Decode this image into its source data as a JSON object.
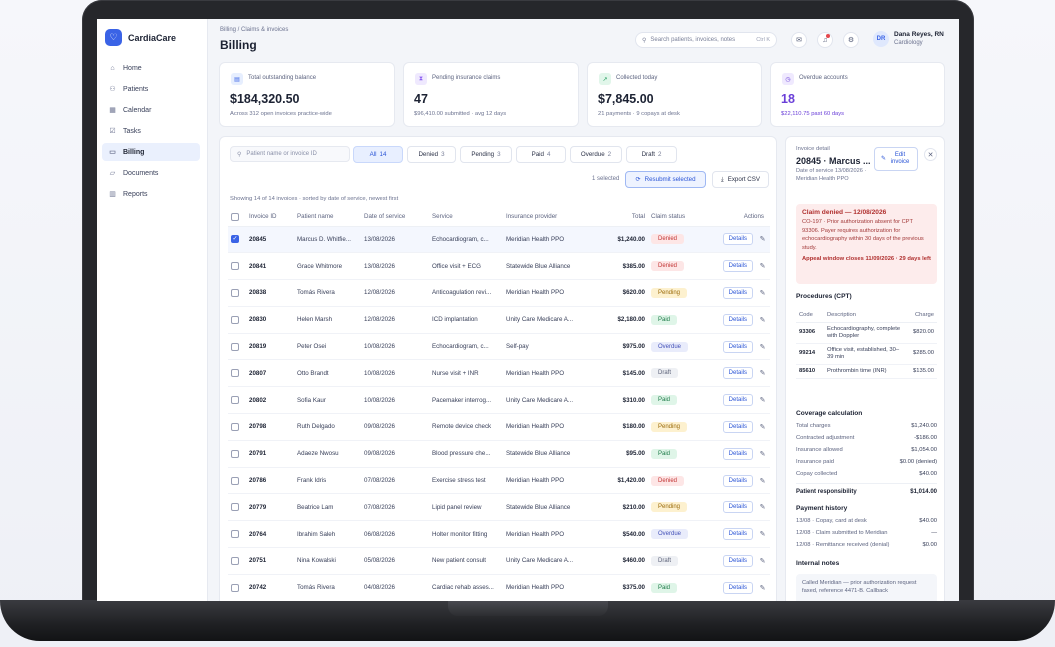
{
  "app": {
    "brand": "CardiaCare"
  },
  "sidebar": {
    "items": [
      {
        "label": "Home",
        "icon": "home-icon",
        "glyph": "⌂"
      },
      {
        "label": "Patients",
        "icon": "users-icon",
        "glyph": "⚇"
      },
      {
        "label": "Calendar",
        "icon": "calendar-icon",
        "glyph": "▦"
      },
      {
        "label": "Tasks",
        "icon": "tasks-icon",
        "glyph": "☑"
      },
      {
        "label": "Billing",
        "icon": "billing-icon",
        "glyph": "▭"
      },
      {
        "label": "Documents",
        "icon": "folder-icon",
        "glyph": "▱"
      },
      {
        "label": "Reports",
        "icon": "reports-icon",
        "glyph": "▥"
      }
    ]
  },
  "header": {
    "breadcrumb": "Billing / Claims & invoices",
    "title": "Billing",
    "search_placeholder": "Search patients, invoices, notes",
    "search_shortcut": "Ctrl K",
    "user": {
      "initials": "DR",
      "name": "Dana Reyes, RN",
      "role": "Cardiology"
    }
  },
  "stats": [
    {
      "label": "Total outstanding balance",
      "value": "$184,320.50",
      "sub": "Across 312 open invoices practice-wide",
      "color": "#3a63e6",
      "bg": "#e6eefe",
      "glyph": "▤"
    },
    {
      "label": "Pending insurance claims",
      "value": "47",
      "sub": "$96,410.00 submitted · avg 12 days",
      "color": "#8a5cf0",
      "bg": "#efe9fe",
      "glyph": "⧗"
    },
    {
      "label": "Collected today",
      "value": "$7,845.00",
      "sub": "21 payments · 9 copays at desk",
      "color": "#1d9a5a",
      "bg": "#e1f6ea",
      "glyph": "↗"
    },
    {
      "label": "Overdue accounts",
      "value": "18",
      "sub": "$22,110.75 past 60 days",
      "color": "#6a3fd8",
      "bg": "#efe9fe",
      "glyph": "◷"
    }
  ],
  "filters": {
    "search_placeholder": "Patient name or invoice ID",
    "tabs": [
      {
        "label": "All",
        "count": "14"
      },
      {
        "label": "Denied",
        "count": "3"
      },
      {
        "label": "Pending",
        "count": "3"
      },
      {
        "label": "Paid",
        "count": "4"
      },
      {
        "label": "Overdue",
        "count": "2"
      },
      {
        "label": "Draft",
        "count": "2"
      }
    ],
    "selected_info": "1 selected",
    "resubmit_label": "Resubmit selected",
    "export_label": "Export CSV",
    "showing": "Showing 14 of 14 invoices · sorted by date of service, newest first"
  },
  "table": {
    "columns": [
      "Invoice ID",
      "Patient name",
      "Date of service",
      "Service",
      "Insurance provider",
      "Total",
      "Claim status",
      "Actions"
    ],
    "details_label": "Details",
    "rows": [
      {
        "id": "20845",
        "patient": "Marcus D. Whitfie...",
        "date": "13/08/2026",
        "service": "Echocardiogram, c...",
        "insurer": "Meridian Health PPO",
        "total": "$1,240.00",
        "status": "Denied",
        "selected": true
      },
      {
        "id": "20841",
        "patient": "Grace Whitmore",
        "date": "13/08/2026",
        "service": "Office visit + ECG",
        "insurer": "Statewide Blue Alliance",
        "total": "$385.00",
        "status": "Denied"
      },
      {
        "id": "20838",
        "patient": "Tomás Rivera",
        "date": "12/08/2026",
        "service": "Anticoagulation revi...",
        "insurer": "Meridian Health PPO",
        "total": "$620.00",
        "status": "Pending"
      },
      {
        "id": "20830",
        "patient": "Helen Marsh",
        "date": "12/08/2026",
        "service": "ICD implantation",
        "insurer": "Unity Care Medicare A...",
        "total": "$2,180.00",
        "status": "Paid"
      },
      {
        "id": "20819",
        "patient": "Peter Osei",
        "date": "10/08/2026",
        "service": "Echocardiogram, c...",
        "insurer": "Self-pay",
        "total": "$975.00",
        "status": "Overdue"
      },
      {
        "id": "20807",
        "patient": "Otto Brandt",
        "date": "10/08/2026",
        "service": "Nurse visit + INR",
        "insurer": "Meridian Health PPO",
        "total": "$145.00",
        "status": "Draft"
      },
      {
        "id": "20802",
        "patient": "Sofia Kaur",
        "date": "10/08/2026",
        "service": "Pacemaker interrog...",
        "insurer": "Unity Care Medicare A...",
        "total": "$310.00",
        "status": "Paid"
      },
      {
        "id": "20798",
        "patient": "Ruth Delgado",
        "date": "09/08/2026",
        "service": "Remote device check",
        "insurer": "Meridian Health PPO",
        "total": "$180.00",
        "status": "Pending"
      },
      {
        "id": "20791",
        "patient": "Adaeze Nwosu",
        "date": "09/08/2026",
        "service": "Blood pressure che...",
        "insurer": "Statewide Blue Alliance",
        "total": "$95.00",
        "status": "Paid"
      },
      {
        "id": "20786",
        "patient": "Frank Idris",
        "date": "07/08/2026",
        "service": "Exercise stress test",
        "insurer": "Meridian Health PPO",
        "total": "$1,420.00",
        "status": "Denied"
      },
      {
        "id": "20779",
        "patient": "Beatrice Lam",
        "date": "07/08/2026",
        "service": "Lipid panel review",
        "insurer": "Statewide Blue Alliance",
        "total": "$210.00",
        "status": "Pending"
      },
      {
        "id": "20764",
        "patient": "Ibrahim Saleh",
        "date": "06/08/2026",
        "service": "Holter monitor fitting",
        "insurer": "Meridian Health PPO",
        "total": "$540.00",
        "status": "Overdue"
      },
      {
        "id": "20751",
        "patient": "Nina Kowalski",
        "date": "05/08/2026",
        "service": "New patient consult",
        "insurer": "Unity Care Medicare A...",
        "total": "$460.00",
        "status": "Draft"
      },
      {
        "id": "20742",
        "patient": "Tomás Rivera",
        "date": "04/08/2026",
        "service": "Cardiac rehab asses...",
        "insurer": "Meridian Health PPO",
        "total": "$375.00",
        "status": "Paid"
      }
    ]
  },
  "detail": {
    "label": "Invoice detail",
    "title": "20845 · Marcus ...",
    "meta": "Date of service 13/08/2026 · Meridian Health PPO",
    "edit_label": "Edit invoice",
    "alert": {
      "heading": "Claim denied — 12/08/2026",
      "body": "CO-197 · Prior authorization absent for CPT 93306. Payer requires authorization for echocardiography within 30 days of the previous study.",
      "window": "Appeal window closes 11/09/2026 · 29 days left"
    },
    "procedures": {
      "heading": "Procedures (CPT)",
      "columns": [
        "Code",
        "Description",
        "Charge"
      ],
      "rows": [
        {
          "code": "93306",
          "desc": "Echocardiography, complete with Doppler",
          "charge": "$820.00"
        },
        {
          "code": "99214",
          "desc": "Office visit, established, 30–39 min",
          "charge": "$285.00"
        },
        {
          "code": "85610",
          "desc": "Prothrombin time (INR)",
          "charge": "$135.00"
        }
      ]
    },
    "coverage": {
      "heading": "Coverage calculation",
      "rows": [
        {
          "k": "Total charges",
          "v": "$1,240.00"
        },
        {
          "k": "Contracted adjustment",
          "v": "-$186.00"
        },
        {
          "k": "Insurance allowed",
          "v": "$1,054.00"
        },
        {
          "k": "Insurance paid",
          "v": "$0.00 (denied)"
        },
        {
          "k": "Copay collected",
          "v": "$40.00"
        }
      ],
      "total": {
        "k": "Patient responsibility",
        "v": "$1,014.00"
      }
    },
    "history": {
      "heading": "Payment history",
      "rows": [
        {
          "k": "13/08 · Copay, card at desk",
          "v": "$40.00"
        },
        {
          "k": "12/08 · Claim submitted to Meridian",
          "v": "—"
        },
        {
          "k": "12/08 · Remittance received (denial)",
          "v": "$0.00"
        }
      ]
    },
    "notes": {
      "heading": "Internal notes",
      "body": "Called Meridian — prior authorization request faxed, reference 4471-B. Callback"
    }
  }
}
